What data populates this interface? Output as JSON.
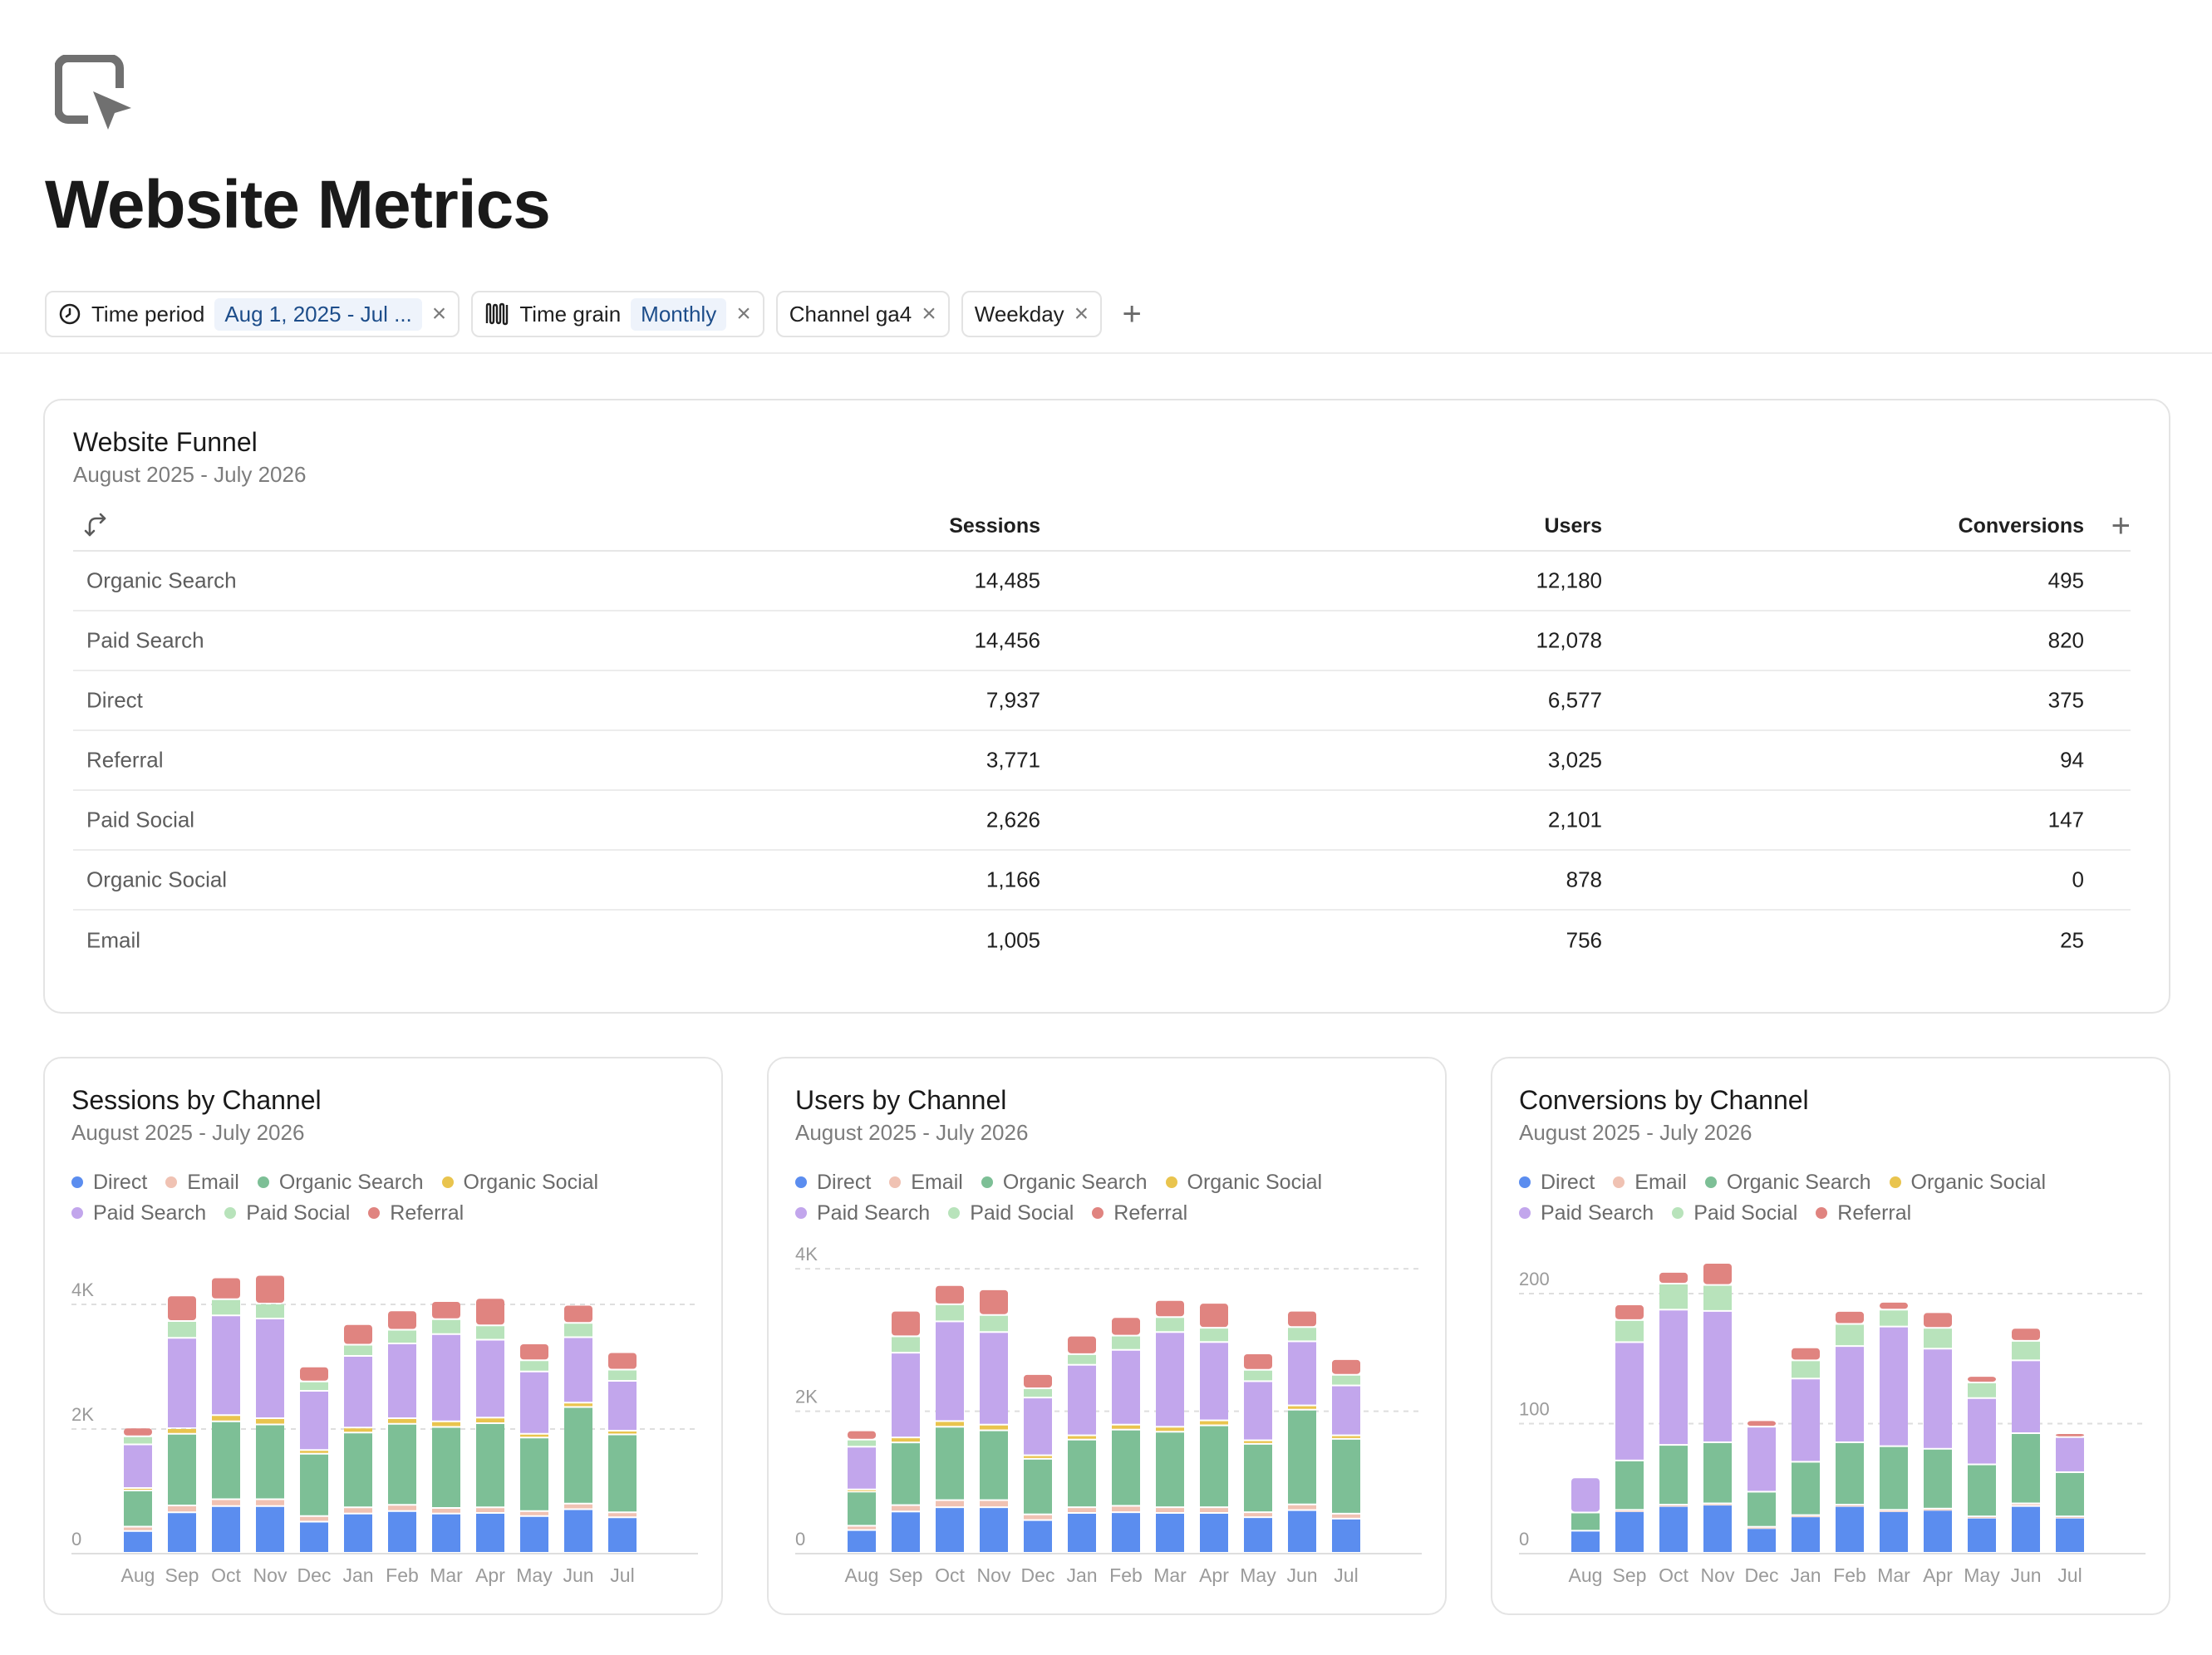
{
  "page": {
    "title": "Website Metrics"
  },
  "filters": {
    "time_period": {
      "label": "Time period",
      "value": "Aug 1, 2025 - Jul ..."
    },
    "time_grain": {
      "label": "Time grain",
      "value": "Monthly"
    },
    "channel": {
      "label": "Channel ga4"
    },
    "weekday": {
      "label": "Weekday"
    },
    "add": "+"
  },
  "funnel": {
    "title": "Website Funnel",
    "subtitle": "August 2025 - July 2026",
    "columns": [
      "Sessions",
      "Users",
      "Conversions"
    ],
    "add_column": "+",
    "rows": [
      {
        "channel": "Organic Search",
        "sessions": "14,485",
        "users": "12,180",
        "conversions": "495"
      },
      {
        "channel": "Paid Search",
        "sessions": "14,456",
        "users": "12,078",
        "conversions": "820"
      },
      {
        "channel": "Direct",
        "sessions": "7,937",
        "users": "6,577",
        "conversions": "375"
      },
      {
        "channel": "Referral",
        "sessions": "3,771",
        "users": "3,025",
        "conversions": "94"
      },
      {
        "channel": "Paid Social",
        "sessions": "2,626",
        "users": "2,101",
        "conversions": "147"
      },
      {
        "channel": "Organic Social",
        "sessions": "1,166",
        "users": "878",
        "conversions": "0"
      },
      {
        "channel": "Email",
        "sessions": "1,005",
        "users": "756",
        "conversions": "25"
      }
    ]
  },
  "legend": [
    {
      "name": "Direct",
      "color": "#5b8def"
    },
    {
      "name": "Email",
      "color": "#f0c2b3"
    },
    {
      "name": "Organic Search",
      "color": "#7dbf96"
    },
    {
      "name": "Organic Social",
      "color": "#e9c44e"
    },
    {
      "name": "Paid Search",
      "color": "#c2a6ec"
    },
    {
      "name": "Paid Social",
      "color": "#b8e3bb"
    },
    {
      "name": "Referral",
      "color": "#e08480"
    }
  ],
  "chart_data": [
    {
      "type": "bar",
      "stacked": true,
      "title": "Sessions by Channel",
      "subtitle": "August 2025 - July 2026",
      "categories": [
        "Aug",
        "Sep",
        "Oct",
        "Nov",
        "Dec",
        "Jan",
        "Feb",
        "Mar",
        "Apr",
        "May",
        "Jun",
        "Jul"
      ],
      "ylim": [
        0,
        4800
      ],
      "yticks": [
        0,
        2000,
        4000
      ],
      "ytick_labels": [
        "0",
        "2K",
        "4K"
      ],
      "grid": true,
      "legend_position": "top-left",
      "series": [
        {
          "name": "Direct",
          "values": [
            350,
            650,
            750,
            750,
            500,
            630,
            670,
            630,
            640,
            590,
            700,
            570
          ]
        },
        {
          "name": "Email",
          "values": [
            70,
            110,
            110,
            110,
            90,
            100,
            100,
            90,
            90,
            80,
            90,
            80
          ]
        },
        {
          "name": "Organic Search",
          "values": [
            580,
            1150,
            1250,
            1200,
            1000,
            1200,
            1300,
            1300,
            1350,
            1180,
            1550,
            1250
          ]
        },
        {
          "name": "Organic Social",
          "values": [
            40,
            90,
            100,
            100,
            60,
            80,
            90,
            90,
            90,
            60,
            70,
            60
          ]
        },
        {
          "name": "Paid Search",
          "values": [
            700,
            1450,
            1600,
            1600,
            950,
            1150,
            1200,
            1400,
            1250,
            1000,
            1050,
            800
          ]
        },
        {
          "name": "Paid Social",
          "values": [
            130,
            270,
            260,
            240,
            150,
            180,
            220,
            240,
            230,
            180,
            230,
            180
          ]
        },
        {
          "name": "Referral",
          "values": [
            140,
            410,
            350,
            460,
            240,
            330,
            310,
            290,
            440,
            270,
            290,
            280
          ]
        }
      ]
    },
    {
      "type": "bar",
      "stacked": true,
      "title": "Users by Channel",
      "subtitle": "August 2025 - July 2026",
      "categories": [
        "Aug",
        "Sep",
        "Oct",
        "Nov",
        "Dec",
        "Jan",
        "Feb",
        "Mar",
        "Apr",
        "May",
        "Jun",
        "Jul"
      ],
      "ylim": [
        0,
        4200
      ],
      "yticks": [
        0,
        2000,
        4000
      ],
      "ytick_labels": [
        "0",
        "2K",
        "4K"
      ],
      "grid": true,
      "legend_position": "top-left",
      "series": [
        {
          "name": "Direct",
          "values": [
            320,
            580,
            640,
            640,
            460,
            560,
            570,
            560,
            560,
            500,
            600,
            480
          ]
        },
        {
          "name": "Email",
          "values": [
            60,
            90,
            100,
            100,
            80,
            80,
            90,
            80,
            80,
            70,
            80,
            70
          ]
        },
        {
          "name": "Organic Search",
          "values": [
            480,
            880,
            1030,
            980,
            780,
            950,
            1070,
            1060,
            1150,
            960,
            1330,
            1050
          ]
        },
        {
          "name": "Organic Social",
          "values": [
            30,
            70,
            80,
            80,
            50,
            60,
            70,
            70,
            70,
            50,
            60,
            50
          ]
        },
        {
          "name": "Paid Search",
          "values": [
            600,
            1190,
            1400,
            1300,
            810,
            990,
            1050,
            1330,
            1100,
            830,
            900,
            700
          ]
        },
        {
          "name": "Paid Social",
          "values": [
            100,
            230,
            240,
            240,
            130,
            150,
            200,
            210,
            200,
            160,
            200,
            150
          ]
        },
        {
          "name": "Referral",
          "values": [
            130,
            360,
            270,
            360,
            200,
            260,
            260,
            240,
            350,
            230,
            230,
            220
          ]
        }
      ]
    },
    {
      "type": "bar",
      "stacked": true,
      "title": "Conversions by Channel",
      "subtitle": "August 2025 - July 2026",
      "categories": [
        "Aug",
        "Sep",
        "Oct",
        "Nov",
        "Dec",
        "Jan",
        "Feb",
        "Mar",
        "Apr",
        "May",
        "Jun",
        "Jul"
      ],
      "ylim": [
        0,
        230
      ],
      "yticks": [
        0,
        100,
        200
      ],
      "ytick_labels": [
        "0",
        "100",
        "200"
      ],
      "grid": true,
      "legend_position": "top-left",
      "series": [
        {
          "name": "Direct",
          "values": [
            17,
            32,
            36,
            37,
            19,
            28,
            36,
            32,
            33,
            27,
            36,
            27
          ]
        },
        {
          "name": "Email",
          "values": [
            0,
            1,
            1,
            1,
            1,
            1,
            1,
            1,
            1,
            1,
            2,
            1
          ]
        },
        {
          "name": "Organic Search",
          "values": [
            14,
            38,
            46,
            47,
            27,
            41,
            48,
            49,
            46,
            40,
            54,
            34
          ]
        },
        {
          "name": "Organic Social",
          "values": [
            0,
            0,
            0,
            0,
            0,
            0,
            0,
            0,
            0,
            0,
            0,
            0
          ]
        },
        {
          "name": "Paid Search",
          "values": [
            27,
            91,
            104,
            101,
            50,
            64,
            74,
            92,
            77,
            51,
            56,
            27
          ]
        },
        {
          "name": "Paid Social",
          "values": [
            0,
            17,
            20,
            20,
            0,
            14,
            17,
            13,
            16,
            12,
            15,
            0
          ]
        },
        {
          "name": "Referral",
          "values": [
            0,
            12,
            9,
            17,
            5,
            10,
            10,
            6,
            12,
            5,
            10,
            3
          ]
        }
      ]
    }
  ]
}
